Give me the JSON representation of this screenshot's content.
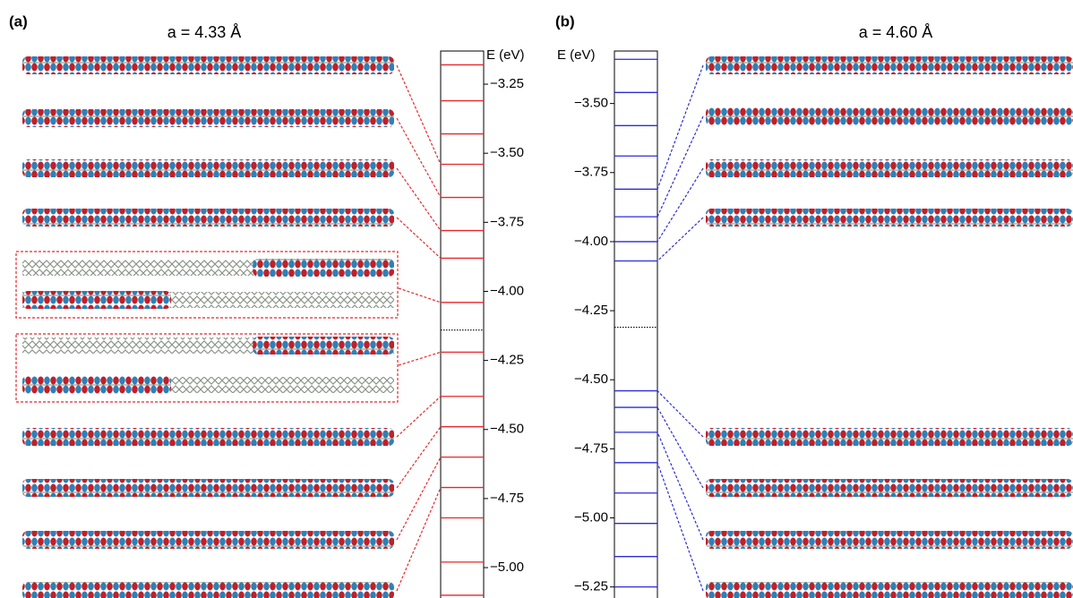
{
  "chart_data": [
    {
      "type": "levels",
      "panel": "(a)",
      "title": "a = 4.33 Å",
      "ylabel": "E (eV)",
      "color": "#e8262a",
      "values": [
        -3.18,
        -3.31,
        -3.43,
        -3.54,
        -3.66,
        -3.78,
        -3.88,
        -4.04,
        -4.22,
        -4.38,
        -4.49,
        -4.6,
        -4.71,
        -4.82,
        -4.98,
        -5.1
      ],
      "fermi": -4.14,
      "fermi_color": "#000000",
      "ylim": [
        -5.11,
        -3.13
      ],
      "yticks": [
        -3.25,
        -3.5,
        -3.75,
        -4.0,
        -4.25,
        -4.5,
        -4.75,
        -5.0
      ],
      "ytick_labels": [
        "−3.25",
        "−3.50",
        "−3.75",
        "−4.00",
        "−4.25",
        "−4.50",
        "−4.75",
        "−5.00"
      ]
    },
    {
      "type": "levels",
      "panel": "(b)",
      "title": "a = 4.60 Å",
      "ylabel": "E (eV)",
      "color": "#2b2bd6",
      "values": [
        -3.34,
        -3.46,
        -3.58,
        -3.69,
        -3.81,
        -3.91,
        -4.0,
        -4.07,
        -4.54,
        -4.6,
        -4.69,
        -4.8,
        -4.91,
        -5.02,
        -5.14,
        -5.25
      ],
      "fermi": -4.31,
      "fermi_color": "#000000",
      "ylim": [
        -5.29,
        -3.31
      ],
      "yticks": [
        -3.5,
        -3.75,
        -4.0,
        -4.25,
        -4.5,
        -4.75,
        -5.0,
        -5.25
      ],
      "ytick_labels": [
        "−3.50",
        "−3.75",
        "−4.00",
        "−4.25",
        "−4.50",
        "−4.75",
        "−5.00",
        "−5.25"
      ]
    }
  ]
}
